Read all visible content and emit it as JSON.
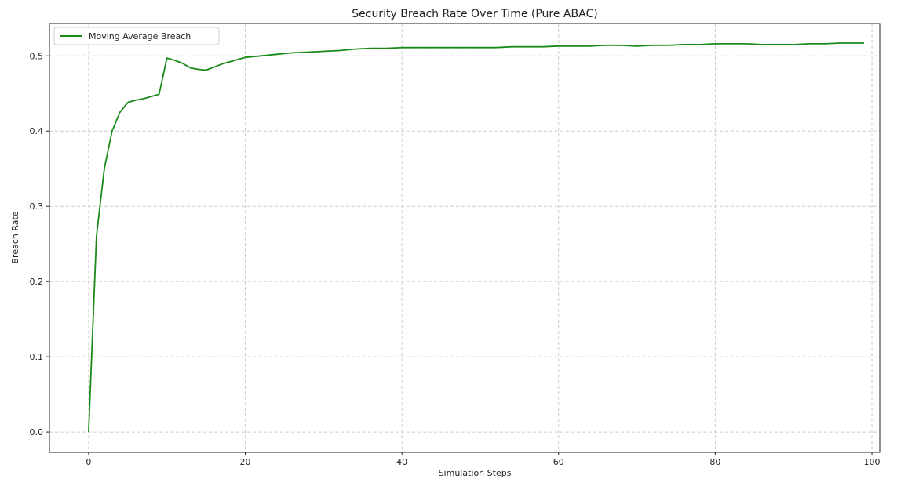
{
  "chart_data": {
    "type": "line",
    "title": "Security Breach Rate Over Time (Pure ABAC)",
    "xlabel": "Simulation Steps",
    "ylabel": "Breach Rate",
    "xlim": [
      -5,
      101
    ],
    "ylim": [
      -0.027,
      0.543
    ],
    "xticks": [
      0,
      20,
      40,
      60,
      80,
      100
    ],
    "yticks": [
      0.0,
      0.1,
      0.2,
      0.3,
      0.4,
      0.5
    ],
    "xtick_labels": [
      "0",
      "20",
      "40",
      "60",
      "80",
      "100"
    ],
    "ytick_labels": [
      "0.0",
      "0.1",
      "0.2",
      "0.3",
      "0.4",
      "0.5"
    ],
    "grid": true,
    "legend": "upper-left",
    "series": [
      {
        "name": "Moving Average Breach",
        "color": "#1a8a1a",
        "x": [
          0,
          1,
          2,
          3,
          4,
          5,
          6,
          7,
          8,
          9,
          10,
          11,
          12,
          13,
          14,
          15,
          16,
          17,
          18,
          19,
          20,
          22,
          24,
          26,
          28,
          30,
          32,
          34,
          36,
          38,
          40,
          42,
          44,
          46,
          48,
          50,
          52,
          54,
          56,
          58,
          60,
          62,
          64,
          66,
          68,
          70,
          72,
          74,
          76,
          78,
          80,
          82,
          84,
          86,
          88,
          90,
          92,
          94,
          96,
          98,
          99
        ],
        "values": [
          0.0,
          0.26,
          0.35,
          0.4,
          0.425,
          0.438,
          0.441,
          0.443,
          0.446,
          0.449,
          0.497,
          0.494,
          0.49,
          0.484,
          0.482,
          0.481,
          0.485,
          0.489,
          0.492,
          0.495,
          0.498,
          0.5,
          0.502,
          0.504,
          0.505,
          0.506,
          0.507,
          0.509,
          0.51,
          0.51,
          0.511,
          0.511,
          0.511,
          0.511,
          0.511,
          0.511,
          0.511,
          0.512,
          0.512,
          0.512,
          0.513,
          0.513,
          0.513,
          0.514,
          0.514,
          0.513,
          0.514,
          0.514,
          0.515,
          0.515,
          0.516,
          0.516,
          0.516,
          0.515,
          0.515,
          0.515,
          0.516,
          0.516,
          0.517,
          0.517,
          0.517
        ]
      }
    ]
  }
}
